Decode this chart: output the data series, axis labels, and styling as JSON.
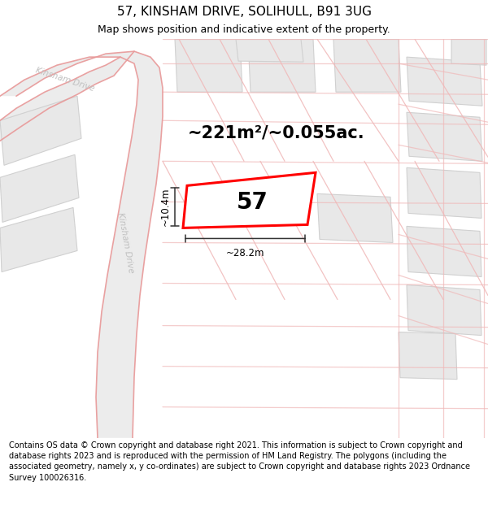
{
  "title": "57, KINSHAM DRIVE, SOLIHULL, B91 3UG",
  "subtitle": "Map shows position and indicative extent of the property.",
  "footer": "Contains OS data © Crown copyright and database right 2021. This information is subject to Crown copyright and database rights 2023 and is reproduced with the permission of HM Land Registry. The polygons (including the associated geometry, namely x, y co-ordinates) are subject to Crown copyright and database rights 2023 Ordnance Survey 100026316.",
  "area_label": "~221m²/~0.055ac.",
  "number_label": "57",
  "width_label": "~28.2m",
  "height_label": "~10.4m",
  "road_color": "#f0b8b8",
  "road_color2": "#e89898",
  "block_fill": "#e8e8e8",
  "block_edge": "#d0d0d0",
  "road_label_color": "#c0c0c0",
  "plot_color": "#ff0000",
  "title_fontsize": 11,
  "subtitle_fontsize": 9,
  "footer_fontsize": 7.0
}
